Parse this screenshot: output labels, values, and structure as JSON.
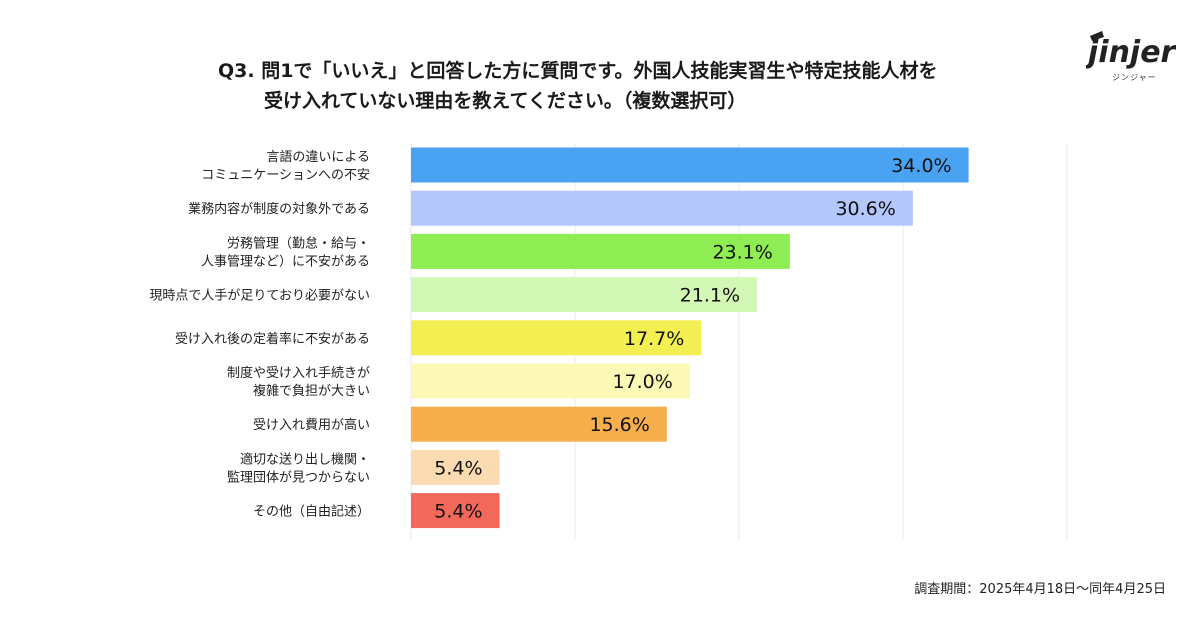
{
  "title": {
    "line1": "Q3. 問1で「いいえ」と回答した方に質問です。外国人技能実習生や特定技能人材を",
    "line2": "受け入れていない理由を教えてください。（複数選択可）"
  },
  "logo": {
    "text": "jinjer",
    "kana": "ジンジャー",
    "icon": "jinjer-logo"
  },
  "footnote": "調査期間：2025年4月18日〜同年4月25日",
  "chart_data": {
    "type": "bar",
    "orientation": "horizontal",
    "categories": [
      [
        "言語の違いによる",
        "コミュニケーションへの不安"
      ],
      [
        "業務内容が制度の対象外である"
      ],
      [
        "労務管理（勤怠・給与・",
        "人事管理など）に不安がある"
      ],
      [
        "現時点で人手が足りており必要がない"
      ],
      [
        "受け入れ後の定着率に不安がある"
      ],
      [
        "制度や受け入れ手続きが",
        "複雑で負担が大きい"
      ],
      [
        "受け入れ費用が高い"
      ],
      [
        "適切な送り出し機関・",
        "監理団体が見つからない"
      ],
      [
        "その他（自由記述）"
      ]
    ],
    "values": [
      34.0,
      30.6,
      23.1,
      21.1,
      17.7,
      17.0,
      15.6,
      5.4,
      5.4
    ],
    "labels": [
      "34.0%",
      "30.6%",
      "23.1%",
      "21.1%",
      "17.7%",
      "17.0%",
      "15.6%",
      "5.4%",
      "5.4%"
    ],
    "colors": [
      "#4aa3f2",
      "#b3c7fb",
      "#8eed52",
      "#d3f7b5",
      "#f3ef52",
      "#fcf8b6",
      "#f6af4c",
      "#fbdcb2",
      "#f2695b"
    ],
    "xlim": [
      0,
      40
    ],
    "grid": true,
    "gridline_color": "#e8e8ee"
  }
}
